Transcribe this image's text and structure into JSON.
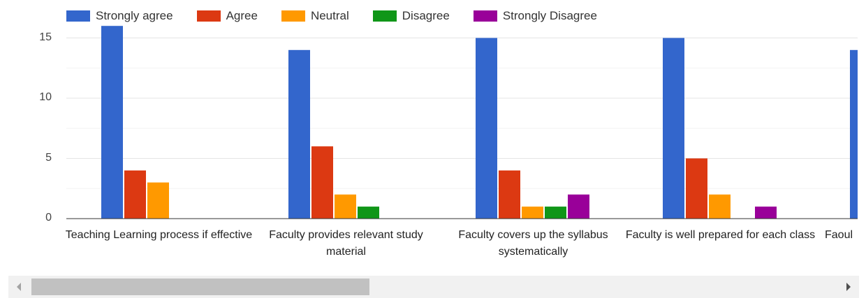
{
  "chart_data": {
    "type": "bar",
    "categories": [
      "Teaching Learning process if effective",
      "Faculty provides relevant study material",
      "Faculty covers up the syllabus systematically",
      "Faculty is well prepared for each class",
      "Faoul"
    ],
    "series": [
      {
        "name": "Strongly agree",
        "color": "#3366cc",
        "values": [
          16,
          14,
          15,
          15,
          14
        ]
      },
      {
        "name": "Agree",
        "color": "#dc3912",
        "values": [
          4,
          6,
          4,
          5,
          null
        ]
      },
      {
        "name": "Neutral",
        "color": "#ff9900",
        "values": [
          3,
          2,
          1,
          2,
          null
        ]
      },
      {
        "name": "Disagree",
        "color": "#109618",
        "values": [
          0,
          1,
          1,
          0,
          null
        ]
      },
      {
        "name": "Strongly Disagree",
        "color": "#990099",
        "values": [
          0,
          0,
          2,
          1,
          null
        ]
      }
    ],
    "yticks": [
      "0",
      "5",
      "10",
      "15"
    ],
    "ylim": [
      0,
      16
    ],
    "grid": true,
    "legend_position": "top",
    "title": "",
    "xlabel": "",
    "ylabel": ""
  },
  "scrollbar": {
    "left_arrow_icon": "triangle-left-icon",
    "right_arrow_icon": "triangle-right-icon",
    "thumb_fraction": 0.42
  }
}
